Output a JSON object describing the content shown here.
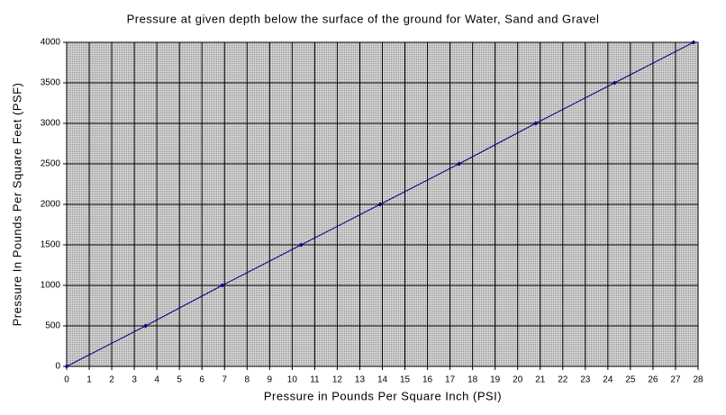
{
  "chart_data": {
    "type": "line",
    "title": "Pressure at given depth below the surface of the ground for Water, Sand and Gravel",
    "x_label": "Pressure in Pounds Per Square Inch (PSI)",
    "y_label": "Pressure In Pounds Per Square Feet (PSF)",
    "x": [
      0,
      3.5,
      6.9,
      10.4,
      13.9,
      17.4,
      20.8,
      24.3,
      27.8
    ],
    "values": [
      0,
      500,
      1000,
      1500,
      2000,
      2500,
      3000,
      3500,
      4000
    ],
    "color": "#000080",
    "xlim": [
      0,
      28
    ],
    "ylim": [
      0,
      4000
    ],
    "xticks": [
      0,
      1,
      2,
      3,
      4,
      5,
      6,
      7,
      8,
      9,
      10,
      11,
      12,
      13,
      14,
      15,
      16,
      17,
      18,
      19,
      20,
      21,
      22,
      23,
      24,
      25,
      26,
      27,
      28
    ],
    "yticks": [
      0,
      500,
      1000,
      1500,
      2000,
      2500,
      3000,
      3500,
      4000
    ],
    "grid": true
  }
}
